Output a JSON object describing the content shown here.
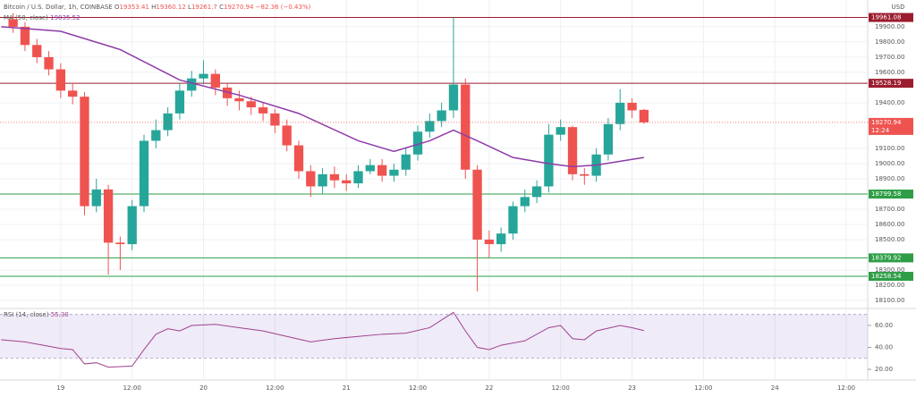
{
  "chart_data": [
    {
      "type": "candlestick",
      "title": "Bitcoin / U.S. Dollar, 1h, COINBASE",
      "ohlc_labels": [
        "O",
        "H",
        "L",
        "C"
      ],
      "change": "−82.36 (−0.43%)",
      "currency": "USD",
      "countdown": "12:24",
      "up_color": "#26a69a",
      "down_color": "#ef5350",
      "x": [
        -8,
        -6,
        -4,
        -2,
        0,
        2,
        4,
        6,
        8,
        10,
        12,
        14,
        16,
        18,
        20,
        22,
        24,
        26,
        28,
        30,
        32,
        34,
        36,
        38,
        40,
        42,
        44,
        46,
        48,
        50,
        52,
        54,
        56,
        58,
        60,
        62,
        64,
        66,
        68,
        70,
        72,
        74,
        76,
        78,
        80,
        82,
        84,
        86,
        88,
        90,
        92,
        94,
        96,
        98
      ],
      "open": [
        19950,
        19900,
        19780,
        19700,
        19620,
        19480,
        19440,
        18720,
        18830,
        18480,
        18470,
        18720,
        19150,
        19220,
        19330,
        19480,
        19560,
        19590,
        19500,
        19430,
        19410,
        19370,
        19330,
        19250,
        19120,
        18950,
        18850,
        18930,
        18890,
        18870,
        18950,
        18990,
        18920,
        18960,
        19060,
        19210,
        19280,
        19350,
        19520,
        18960,
        18500,
        18470,
        18540,
        18720,
        18780,
        18850,
        19190,
        19240,
        18930,
        18920,
        19060,
        19260,
        19400,
        19353.41
      ],
      "high": [
        19990,
        19930,
        19820,
        19740,
        19660,
        19530,
        19470,
        18900,
        18860,
        18520,
        18760,
        19190,
        19290,
        19370,
        19530,
        19610,
        19680,
        19620,
        19530,
        19480,
        19440,
        19400,
        19360,
        19290,
        19150,
        18990,
        18970,
        18980,
        18930,
        18990,
        19030,
        19030,
        19000,
        19100,
        19250,
        19330,
        19400,
        19960,
        19560,
        18990,
        18560,
        18580,
        18750,
        18830,
        18890,
        19260,
        19290,
        19250,
        18970,
        19100,
        19300,
        19490,
        19430,
        19360.12
      ],
      "low": [
        19860,
        19740,
        19660,
        19580,
        19430,
        19390,
        18660,
        18680,
        18270,
        18300,
        18430,
        18680,
        19100,
        19180,
        19290,
        19440,
        19520,
        19450,
        19380,
        19350,
        19320,
        19280,
        19200,
        19080,
        18900,
        18780,
        18800,
        18840,
        18820,
        18840,
        18930,
        18880,
        18880,
        18920,
        19020,
        19170,
        19240,
        19300,
        18900,
        18160,
        18380,
        18420,
        18500,
        18680,
        18740,
        18810,
        19150,
        18890,
        18860,
        18880,
        19020,
        19220,
        19300,
        19261.7
      ],
      "close": [
        19900,
        19780,
        19700,
        19620,
        19480,
        19440,
        18720,
        18830,
        18480,
        18470,
        18720,
        19150,
        19220,
        19330,
        19480,
        19560,
        19590,
        19500,
        19430,
        19410,
        19370,
        19330,
        19250,
        19120,
        18950,
        18850,
        18930,
        18890,
        18870,
        18950,
        18990,
        18920,
        18960,
        19060,
        19210,
        19280,
        19350,
        19520,
        18960,
        18500,
        18470,
        18540,
        18720,
        18780,
        18850,
        19190,
        19240,
        18930,
        18920,
        19060,
        19260,
        19400,
        19350,
        19270.94
      ],
      "ma": {
        "name": "MA (50, close)",
        "value_label": "19035.52",
        "color": "#8e3ba8",
        "x": [
          -10,
          0,
          10,
          20,
          30,
          40,
          50,
          56,
          62,
          66,
          70,
          76,
          82,
          86,
          90,
          98
        ],
        "values": [
          19900,
          19870,
          19750,
          19550,
          19450,
          19330,
          19150,
          19080,
          19150,
          19220,
          19150,
          19040,
          19000,
          18980,
          18990,
          19040
        ]
      },
      "levels": [
        {
          "value": 19961.08,
          "color": "#9b1c2e"
        },
        {
          "value": 19528.19,
          "color": "#9b1c2e"
        },
        {
          "value": 18799.58,
          "color": "#2e9e46"
        },
        {
          "value": 18379.92,
          "color": "#2e9e46"
        },
        {
          "value": 18258.54,
          "color": "#2e9e46"
        }
      ],
      "xlim": [
        -10.2,
        135.6
      ],
      "xticks": [
        {
          "value": 0,
          "label": "19"
        },
        {
          "value": 12,
          "label": "12:00"
        },
        {
          "value": 24,
          "label": "20"
        },
        {
          "value": 36,
          "label": "12:00"
        },
        {
          "value": 48,
          "label": "21"
        },
        {
          "value": 60,
          "label": "12:00"
        },
        {
          "value": 72,
          "label": "22"
        },
        {
          "value": 84,
          "label": "12:00"
        },
        {
          "value": 96,
          "label": "23"
        },
        {
          "value": 108,
          "label": "12:00"
        },
        {
          "value": 120,
          "label": "24"
        },
        {
          "value": 132,
          "label": "12:00"
        }
      ],
      "ylim": [
        18047,
        20076
      ],
      "yticks": [
        {
          "value": 19900,
          "label": "19900.00"
        },
        {
          "value": 19800,
          "label": "19800.00"
        },
        {
          "value": 19700,
          "label": "19700.00"
        },
        {
          "value": 19600,
          "label": "19600.00"
        },
        {
          "value": 19400,
          "label": "19400.00"
        },
        {
          "value": 19100,
          "label": "19100.00"
        },
        {
          "value": 19000,
          "label": "19000.00"
        },
        {
          "value": 18900,
          "label": "18900.00"
        },
        {
          "value": 18700,
          "label": "18700.00"
        },
        {
          "value": 18600,
          "label": "18600.00"
        },
        {
          "value": 18500,
          "label": "18500.00"
        },
        {
          "value": 18300,
          "label": "18300.00"
        },
        {
          "value": 18200,
          "label": "18200.00"
        },
        {
          "value": 18100,
          "label": "18100.00"
        }
      ],
      "grid": true
    },
    {
      "type": "line",
      "title": "RSI (14, close)",
      "value_label": "55.30",
      "color": "#a0408f",
      "band": [
        30,
        70
      ],
      "x": [
        -10,
        -6,
        -2,
        0,
        2,
        4,
        6,
        8,
        12,
        14,
        16,
        18,
        20,
        22,
        26,
        30,
        34,
        38,
        42,
        46,
        50,
        54,
        58,
        62,
        66,
        68,
        70,
        72,
        74,
        78,
        82,
        84,
        86,
        88,
        90,
        94,
        96,
        98
      ],
      "values": [
        47,
        45,
        41,
        39,
        38,
        25,
        26,
        22,
        23,
        38,
        52,
        57,
        55,
        60,
        61,
        58,
        55,
        50,
        45,
        48,
        50,
        52,
        53,
        58,
        72,
        55,
        40,
        38,
        42,
        46,
        58,
        60,
        48,
        47,
        55,
        60,
        58,
        55.3
      ],
      "ylim": [
        12.7,
        75.5
      ],
      "yticks": [
        {
          "value": 60,
          "label": "60.00"
        },
        {
          "value": 40,
          "label": "40.00"
        },
        {
          "value": 20,
          "label": "20.00"
        }
      ]
    }
  ]
}
